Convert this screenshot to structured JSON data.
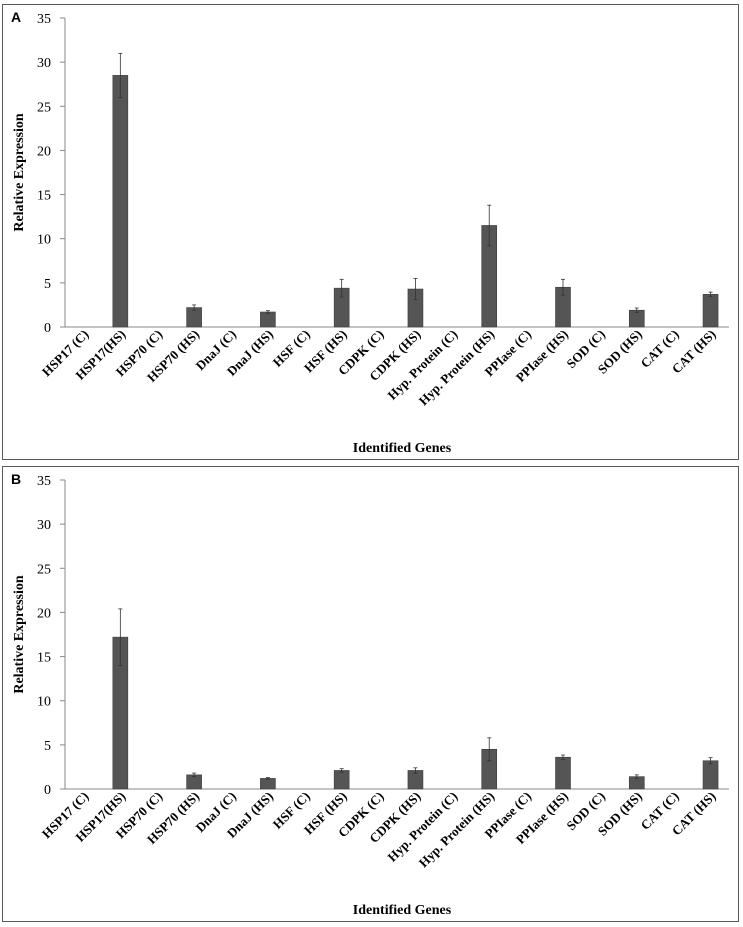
{
  "chart_data": [
    {
      "panel": "A",
      "type": "bar",
      "title": "",
      "xlabel": "Identified Genes",
      "ylabel": "Relative Expression",
      "ylim": [
        0,
        35
      ],
      "yticks": [
        0,
        5,
        10,
        15,
        20,
        25,
        30,
        35
      ],
      "grid": false,
      "bar_color": "#555555",
      "categories": [
        "HSP17 (C)",
        "HSP17(HS)",
        "HSP70 (C)",
        "HSP70 (HS)",
        "DnaJ (C)",
        "DnaJ (HS)",
        "HSF (C)",
        "HSF (HS)",
        "CDPK (C)",
        "CDPK (HS)",
        "Hyp. Protein (C)",
        "Hyp. Protein (HS)",
        "PPIase (C)",
        "PPIase (HS)",
        "SOD (C)",
        "SOD (HS)",
        "CAT (C)",
        "CAT (HS)"
      ],
      "values": [
        0,
        28.5,
        0,
        2.2,
        0,
        1.7,
        0,
        4.4,
        0,
        4.3,
        0,
        11.5,
        0,
        4.5,
        0,
        1.9,
        0,
        3.7
      ],
      "errors": [
        0,
        2.5,
        0,
        0.3,
        0,
        0.15,
        0,
        1.0,
        0,
        1.2,
        0,
        2.3,
        0,
        0.9,
        0,
        0.25,
        0,
        0.25
      ]
    },
    {
      "panel": "B",
      "type": "bar",
      "title": "",
      "xlabel": "Identified Genes",
      "ylabel": "Relative Expression",
      "ylim": [
        0,
        35
      ],
      "yticks": [
        0,
        5,
        10,
        15,
        20,
        25,
        30,
        35
      ],
      "grid": false,
      "bar_color": "#555555",
      "categories": [
        "HSP17 (C)",
        "HSP17(HS)",
        "HSP70 (C)",
        "HSP70 (HS)",
        "DnaJ (C)",
        "DnaJ (HS)",
        "HSF (C)",
        "HSF (HS)",
        "CDPK (C)",
        "CDPK (HS)",
        "Hyp. Protein (C)",
        "Hyp. Protein (HS)",
        "PPIase (C)",
        "PPIase (HS)",
        "SOD (C)",
        "SOD (HS)",
        "CAT (C)",
        "CAT (HS)"
      ],
      "values": [
        0,
        17.2,
        0,
        1.6,
        0,
        1.2,
        0,
        2.1,
        0,
        2.1,
        0,
        4.5,
        0,
        3.6,
        0,
        1.4,
        0,
        3.2
      ],
      "errors": [
        0,
        3.2,
        0,
        0.2,
        0,
        0.1,
        0,
        0.2,
        0,
        0.3,
        0,
        1.3,
        0,
        0.25,
        0,
        0.2,
        0,
        0.35
      ]
    }
  ]
}
